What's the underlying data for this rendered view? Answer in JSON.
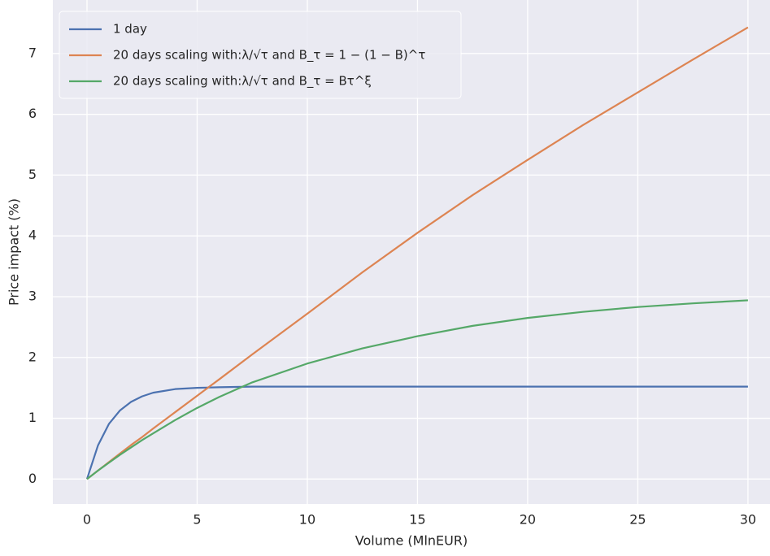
{
  "chart_data": {
    "type": "line",
    "x_label": "Volume (MlnEUR)",
    "y_label": "Price impact (%)",
    "x": [
      0,
      0.5,
      1,
      1.5,
      2,
      2.5,
      3,
      4,
      5,
      6,
      7.5,
      10,
      12.5,
      15,
      17.5,
      20,
      22.5,
      25,
      27.5,
      30
    ],
    "series": [
      {
        "name": "1 day",
        "color": "#4c72b0",
        "values": [
          0,
          0.555,
          0.91,
          1.13,
          1.27,
          1.36,
          1.42,
          1.48,
          1.5,
          1.51,
          1.52,
          1.52,
          1.52,
          1.52,
          1.52,
          1.52,
          1.52,
          1.52,
          1.52,
          1.52
        ]
      },
      {
        "name": "20 days scaling with:λ/√τ and B_τ = 1 − (1 − B)^τ",
        "color": "#dd8452",
        "values": [
          0,
          0.14,
          0.28,
          0.42,
          0.56,
          0.69,
          0.83,
          1.1,
          1.37,
          1.64,
          2.05,
          2.72,
          3.4,
          4.05,
          4.67,
          5.25,
          5.82,
          6.36,
          6.9,
          7.43
        ]
      },
      {
        "name": "20 days scaling with:λ/√τ and B_τ = Bτ^ξ",
        "color": "#55a868",
        "values": [
          0,
          0.14,
          0.27,
          0.4,
          0.52,
          0.64,
          0.75,
          0.97,
          1.17,
          1.35,
          1.59,
          1.9,
          2.15,
          2.35,
          2.52,
          2.65,
          2.75,
          2.83,
          2.89,
          2.94
        ]
      }
    ],
    "xlim": [
      -1.55,
      31.0
    ],
    "ylim": [
      -0.41,
      7.88
    ],
    "xticks": [
      0,
      5,
      10,
      15,
      20,
      25,
      30
    ],
    "yticks": [
      0,
      1,
      2,
      3,
      4,
      5,
      6,
      7
    ],
    "grid": true,
    "legend": "upper left"
  }
}
